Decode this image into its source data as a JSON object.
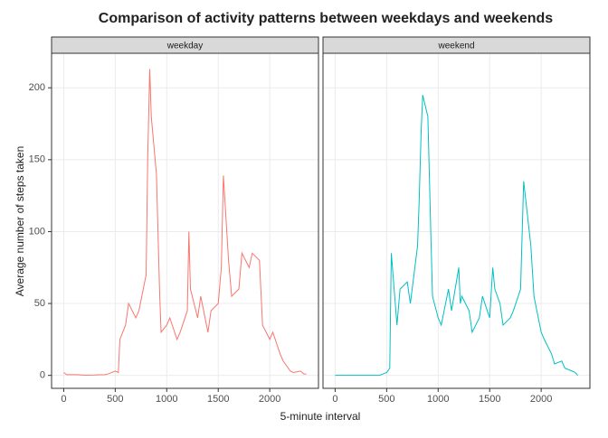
{
  "chart_data": {
    "type": "line",
    "title": "Comparison of activity patterns between weekdays and weekends",
    "x_label": "5-minute interval",
    "y_label": "Average number of steps taken",
    "x": [
      0,
      30,
      100,
      130,
      200,
      230,
      300,
      330,
      400,
      430,
      500,
      530,
      545,
      600,
      630,
      700,
      730,
      800,
      815,
      835,
      850,
      900,
      930,
      945,
      1000,
      1030,
      1100,
      1130,
      1200,
      1215,
      1230,
      1300,
      1330,
      1400,
      1430,
      1500,
      1530,
      1550,
      1600,
      1630,
      1700,
      1730,
      1800,
      1830,
      1900,
      1930,
      2000,
      2030,
      2100,
      2130,
      2200,
      2230,
      2300,
      2330,
      2355
    ],
    "series": [
      {
        "name": "weekday",
        "color": "#F8766D",
        "values": [
          2,
          0.5,
          0.5,
          0.5,
          0.2,
          0.2,
          0.3,
          0.4,
          0.5,
          1,
          3,
          2,
          25,
          35,
          50,
          40,
          45,
          70,
          150,
          213,
          180,
          140,
          60,
          30,
          35,
          40,
          25,
          30,
          45,
          100,
          60,
          40,
          55,
          30,
          45,
          50,
          75,
          139,
          80,
          55,
          60,
          85,
          75,
          85,
          80,
          35,
          25,
          30,
          15,
          10,
          3,
          2,
          3,
          1,
          1
        ]
      },
      {
        "name": "weekend",
        "color": "#00BFC4",
        "values": [
          0,
          0,
          0,
          0,
          0,
          0,
          0,
          0,
          0,
          0,
          2,
          5,
          85,
          35,
          60,
          65,
          50,
          90,
          120,
          170,
          195,
          180,
          95,
          55,
          40,
          35,
          60,
          45,
          75,
          50,
          55,
          45,
          30,
          40,
          55,
          40,
          75,
          60,
          50,
          35,
          40,
          45,
          60,
          135,
          90,
          55,
          30,
          25,
          15,
          8,
          10,
          5,
          3,
          2,
          0
        ]
      }
    ],
    "xlim": [
      -118,
      2473
    ],
    "ylim": [
      -9,
      224
    ],
    "xticks": [
      0,
      500,
      1000,
      1500,
      2000
    ],
    "yticks": [
      0,
      50,
      100,
      150,
      200
    ],
    "grid": true
  }
}
